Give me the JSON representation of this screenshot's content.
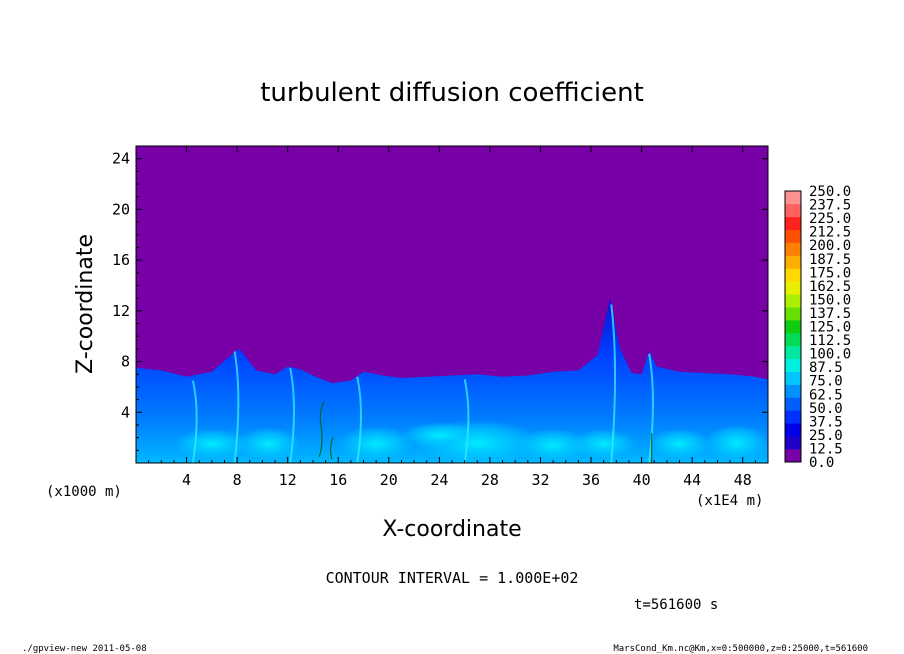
{
  "chart_data": {
    "type": "heatmap",
    "title": "turbulent diffusion coefficient",
    "xlabel": "X-coordinate",
    "ylabel": "Z-coordinate",
    "x_unit_left": "(x1000 m)",
    "x_unit_right": "(x1E4 m)",
    "xlim": [
      0,
      50
    ],
    "ylim": [
      0,
      25
    ],
    "x_ticks": [
      4,
      8,
      12,
      16,
      20,
      24,
      28,
      32,
      36,
      40,
      44,
      48
    ],
    "y_ticks": [
      4,
      8,
      12,
      16,
      20,
      24
    ],
    "colorbar": {
      "levels": [
        0.0,
        12.5,
        25.0,
        37.5,
        50.0,
        62.5,
        75.0,
        87.5,
        100.0,
        112.5,
        125.0,
        137.5,
        150.0,
        162.5,
        175.0,
        187.5,
        200.0,
        212.5,
        225.0,
        237.5,
        250.0
      ],
      "labels": [
        "0.0",
        "12.5",
        "25.0",
        "37.5",
        "50.0",
        "62.5",
        "75.0",
        "87.5",
        "100.0",
        "112.5",
        "125.0",
        "137.5",
        "150.0",
        "162.5",
        "175.0",
        "187.5",
        "200.0",
        "212.5",
        "225.0",
        "237.5",
        "250.0"
      ],
      "colors": [
        "#7700a6",
        "#1f00c8",
        "#0000e8",
        "#0030ff",
        "#0060ff",
        "#0090ff",
        "#00c8ff",
        "#00f0e0",
        "#00e8a0",
        "#00dd55",
        "#10cc10",
        "#66e000",
        "#aaf000",
        "#e8f000",
        "#ffd800",
        "#ffae00",
        "#ff8000",
        "#ff5000",
        "#ff2020",
        "#ff6060",
        "#ff9090"
      ]
    },
    "background_value_range": [
      0.0,
      12.5
    ],
    "boundary_layer_top_z_approx": 7.5,
    "peak_plume_x": 37.5,
    "peak_plume_z": 13
  },
  "contour_interval_text": "CONTOUR INTERVAL = 1.000E+02",
  "time_text": "t=561600 s",
  "footer_left": "./gpview-new   2011-05-08",
  "footer_right": "MarsCond_Km.nc@Km,x=0:500000,z=0:25000,t=561600"
}
